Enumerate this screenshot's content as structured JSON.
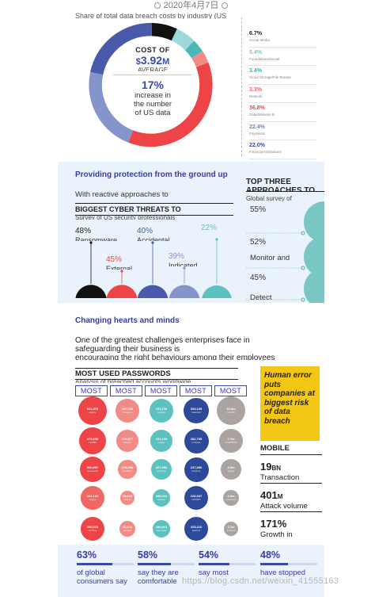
{
  "date_bar": {
    "text": "2020年4月7日"
  },
  "section1": {
    "cut_text": "Share of total data breach costs by industry (US data, following an",
    "cost_label": "COST OF",
    "cost_prefix": "$",
    "cost_value": "3.92",
    "cost_suffix": "M",
    "cost_sub": "AVERAGE",
    "pct": "17%",
    "pct_text_1": "increase in",
    "pct_text_2": "the number",
    "pct_text_3": "of US data",
    "donut": [
      {
        "value": 6.7,
        "color": "#111111"
      },
      {
        "value": 5.4,
        "color": "#9dd9d8"
      },
      {
        "value": 3.4,
        "color": "#4bb8b8"
      },
      {
        "value": 3.3,
        "color": "#f28a86"
      },
      {
        "value": 36.8,
        "color": "#ef4447"
      },
      {
        "value": 22.4,
        "color": "#8595cc"
      },
      {
        "value": 22.0,
        "color": "#4a5aaa"
      }
    ],
    "legend": [
      {
        "value": "6.7%",
        "label": "Social Media",
        "color": "#222222"
      },
      {
        "value": "5.4%",
        "label": "Foundations/Social",
        "color": "#7cc6c6"
      },
      {
        "value": "3.4%",
        "label": "Cloud Storage/File Brands",
        "color": "#3aaeae"
      },
      {
        "value": "3.3%",
        "label": "Network",
        "color": "#ef6662"
      },
      {
        "value": "36.8%",
        "label": "Data/Malware B",
        "color": "#ef4447"
      },
      {
        "value": "22.4%",
        "label": "Payments",
        "color": "#6f80c4"
      },
      {
        "value": "22.0%",
        "label": "Financial Institutions",
        "color": "#3a4aa8"
      }
    ]
  },
  "section2": {
    "title": "Providing protection from the ground up",
    "intro": "With reactive approaches to",
    "threats_head": "BIGGEST CYBER THREATS TO",
    "threats_sub": "Survey of US security professionals",
    "threats": [
      {
        "pct": "48%",
        "name": "Ransomware",
        "value": 48,
        "color": "#111111",
        "label_color": "#222222"
      },
      {
        "pct": "45%",
        "name": "External",
        "value": 45,
        "color": "#ef4447",
        "label_color": "#ef4447"
      },
      {
        "pct": "40%",
        "name": "Accidental",
        "value": 40,
        "color": "#4a5aaa",
        "label_color": "#4a5aaa"
      },
      {
        "pct": "39%",
        "name": "Indicated",
        "value": 39,
        "color": "#8595cc",
        "label_color": "#8595cc"
      },
      {
        "pct": "22%",
        "name": "",
        "value": 22,
        "color": "#5cc2c0",
        "label_color": "#5cc2c0"
      }
    ],
    "top3_head_1": "TOP THREE",
    "top3_head_2": "APPROACHES TO",
    "top3_sub": "Global survey of",
    "top3": [
      {
        "pct": "55%",
        "name": ""
      },
      {
        "pct": "52%",
        "name": "Monitor and"
      },
      {
        "pct": "45%",
        "name": "Detect"
      }
    ]
  },
  "section3": {
    "title": "Changing hearts and minds",
    "para_1": "One of the greatest challenges enterprises face in",
    "para_2": "safeguarding their business is",
    "para_3": "encouraging the right behaviours among their employees",
    "pw_head": "MOST USED PASSWORDS",
    "pw_sub": "Analysis of breached accounts worldwide",
    "most_label": "MOST",
    "bubbles": [
      [
        {
          "n": "632,376",
          "w": "qwerty",
          "color": "#ef4447",
          "size": 36
        },
        {
          "n": "479,235",
          "w": "123456",
          "color": "#ef4447",
          "size": 34
        },
        {
          "n": "330,057",
          "w": "password",
          "color": "#ef4447",
          "size": 32
        },
        {
          "n": "124,121",
          "w": "dragon",
          "color": "#ef6662",
          "size": 30
        },
        {
          "n": "206,619",
          "w": "monkey",
          "color": "#ef4447",
          "size": 30
        }
      ],
      [
        {
          "n": "160,723",
          "w": "iloveyou",
          "color": "#f28a86",
          "size": 30
        },
        {
          "n": "216,677",
          "w": "abc123",
          "color": "#f28a86",
          "size": 28
        },
        {
          "n": "178,093",
          "w": "sunshine",
          "color": "#f28a86",
          "size": 24
        },
        {
          "n": "19,443",
          "w": "111111",
          "color": "#f28a86",
          "size": 18
        },
        {
          "n": "40,613",
          "w": "letmein",
          "color": "#f28a86",
          "size": 20
        }
      ],
      [
        {
          "n": "193,700",
          "w": "football",
          "color": "#5cc2c0",
          "size": 30
        },
        {
          "n": "151,104",
          "w": "master",
          "color": "#5cc2c0",
          "size": 28
        },
        {
          "n": "267,083",
          "w": "welcome",
          "color": "#5cc2c0",
          "size": 26
        },
        {
          "n": "180,021",
          "w": "shadow",
          "color": "#5cc2c0",
          "size": 22
        },
        {
          "n": "160,813",
          "w": "superman",
          "color": "#5cc2c0",
          "size": 22
        }
      ],
      [
        {
          "n": "333,135",
          "w": "baseball",
          "color": "#2d4a9a",
          "size": 32
        },
        {
          "n": "282,795",
          "w": "princess",
          "color": "#2d4a9a",
          "size": 31
        },
        {
          "n": "247,850",
          "w": "trustno1",
          "color": "#2d4a9a",
          "size": 31
        },
        {
          "n": "226,947",
          "w": "1234567",
          "color": "#2d4a9a",
          "size": 30
        },
        {
          "n": "325,116",
          "w": "qwerty1",
          "color": "#2d4a9a",
          "size": 30
        }
      ],
      [
        {
          "n": "23.0m",
          "w": "123456",
          "color": "#aaa3a0",
          "size": 36
        },
        {
          "n": "7.7m",
          "w": "123456789",
          "color": "#aaa3a0",
          "size": 30
        },
        {
          "n": "3.8m",
          "w": "qwerty",
          "color": "#aaa3a0",
          "size": 26
        },
        {
          "n": "3.6m",
          "w": "password",
          "color": "#aaa3a0",
          "size": 20
        },
        {
          "n": "3.1m",
          "w": "1111111",
          "color": "#aaa3a0",
          "size": 18
        }
      ]
    ],
    "quote": "Human error puts companies at biggest risk of data breach",
    "stat_title": "MOBILE",
    "stats": [
      {
        "num": "19",
        "unit": "BN",
        "label": "Transaction"
      },
      {
        "num": "401",
        "unit": "M",
        "label": "Attack volume"
      },
      {
        "num": "171%",
        "unit": "",
        "label": "Growth in"
      }
    ]
  },
  "section4": {
    "items": [
      {
        "pct": "63%",
        "fill": 0.63,
        "text_1": "of global",
        "text_2": "consumers say"
      },
      {
        "pct": "58%",
        "fill": 0.58,
        "text_1": "say they are",
        "text_2": "comfortable"
      },
      {
        "pct": "54%",
        "fill": 0.54,
        "text_1": "say most",
        "text_2": ""
      },
      {
        "pct": "48%",
        "fill": 0.48,
        "text_1": "have stopped",
        "text_2": ""
      }
    ]
  },
  "watermark": "https://blog.csdn.net/weixin_41555163"
}
